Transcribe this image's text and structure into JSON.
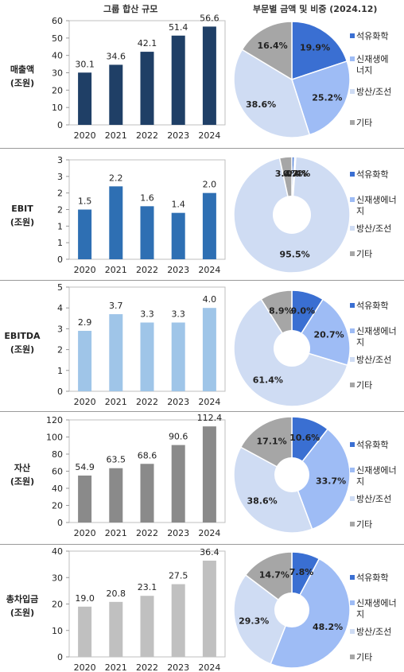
{
  "header": {
    "left_title": "그룹 합산 규모",
    "right_title": "부문별 금액 및 비중 (2024.12)"
  },
  "colors": {
    "bar_revenue": "#1f3f66",
    "bar_ebit": "#2e6fb3",
    "bar_ebitda": "#9fc5e8",
    "bar_assets": "#8a8a8a",
    "bar_debt": "#c0c0c0",
    "pie_petro": "#3a6fd2",
    "pie_renew": "#9ebcf5",
    "pie_defense": "#cfdcf3",
    "pie_other": "#a6a6a6"
  },
  "chart_data": [
    {
      "type": "bar",
      "metric_label": [
        "매출액",
        "(조원)"
      ],
      "categories": [
        "2020",
        "2021",
        "2022",
        "2023",
        "2024"
      ],
      "values": [
        30.1,
        34.6,
        42.1,
        51.4,
        56.6
      ],
      "value_labels": [
        "30.1",
        "34.6",
        "42.1",
        "51.4",
        "56.6"
      ],
      "ylim": [
        0,
        60
      ],
      "yticks": [
        0,
        10,
        20,
        30,
        40,
        50,
        60
      ],
      "ytick_labels": [
        "0",
        "10",
        "20",
        "30",
        "40",
        "50",
        "60"
      ],
      "color": "#1f3f66"
    },
    {
      "type": "bar",
      "metric_label": [
        "EBIT",
        "(조원)"
      ],
      "categories": [
        "2020",
        "2021",
        "2022",
        "2023",
        "2024"
      ],
      "values": [
        1.5,
        2.2,
        1.6,
        1.4,
        2.0
      ],
      "value_labels": [
        "1.5",
        "2.2",
        "1.6",
        "1.4",
        "2.0"
      ],
      "ylim": [
        0,
        3
      ],
      "yticks": [
        0,
        0.5,
        1,
        1.5,
        2,
        2.5,
        3
      ],
      "ytick_labels": [
        "0",
        "1",
        "1",
        "2",
        "2",
        "3",
        "3"
      ],
      "color": "#2e6fb3"
    },
    {
      "type": "bar",
      "metric_label": [
        "EBITDA",
        "(조원)"
      ],
      "categories": [
        "2020",
        "2021",
        "2022",
        "2023",
        "2024"
      ],
      "values": [
        2.9,
        3.7,
        3.3,
        3.3,
        4.0
      ],
      "value_labels": [
        "2.9",
        "3.7",
        "3.3",
        "3.3",
        "4.0"
      ],
      "ylim": [
        0,
        5
      ],
      "yticks": [
        0,
        1,
        2,
        3,
        4,
        5
      ],
      "ytick_labels": [
        "0",
        "1",
        "2",
        "3",
        "4",
        "5"
      ],
      "color": "#9fc5e8"
    },
    {
      "type": "bar",
      "metric_label": [
        "자산",
        "(조원)"
      ],
      "categories": [
        "2020",
        "2021",
        "2022",
        "2023",
        "2024"
      ],
      "values": [
        54.9,
        63.5,
        68.6,
        90.6,
        112.4
      ],
      "value_labels": [
        "54.9",
        "63.5",
        "68.6",
        "90.6",
        "112.4"
      ],
      "ylim": [
        0,
        120
      ],
      "yticks": [
        0,
        20,
        40,
        60,
        80,
        100,
        120
      ],
      "ytick_labels": [
        "0",
        "20",
        "40",
        "60",
        "80",
        "100",
        "120"
      ],
      "color": "#8a8a8a"
    },
    {
      "type": "bar",
      "metric_label": [
        "총차입금",
        "(조원)"
      ],
      "categories": [
        "2020",
        "2021",
        "2022",
        "2023",
        "2024"
      ],
      "values": [
        19.0,
        20.8,
        23.1,
        27.5,
        36.4
      ],
      "value_labels": [
        "19.0",
        "20.8",
        "23.1",
        "27.5",
        "36.4"
      ],
      "ylim": [
        0,
        40
      ],
      "yticks": [
        0,
        10,
        20,
        30,
        40
      ],
      "ytick_labels": [
        "0",
        "10",
        "20",
        "30",
        "40"
      ],
      "color": "#c0c0c0"
    },
    {
      "type": "pie",
      "labels": [
        "석유화학",
        "신재생에너지",
        "방산/조선",
        "기타"
      ],
      "legend_lines": [
        [
          "석유화학"
        ],
        [
          "신재생에",
          "너지"
        ],
        [
          "방산/조선"
        ],
        [
          "기타"
        ]
      ],
      "values": [
        19.9,
        25.2,
        38.6,
        16.4
      ],
      "value_labels": [
        "19.9%",
        "25.2%",
        "38.6%",
        "16.4%"
      ],
      "colors": [
        "#3a6fd2",
        "#9ebcf5",
        "#cfdcf3",
        "#a6a6a6"
      ],
      "donut": false
    },
    {
      "type": "pie",
      "labels": [
        "석유화학",
        "신재생에너지",
        "방산/조선",
        "기타"
      ],
      "legend_lines": [
        [
          "석유화학"
        ],
        [
          "신재생에너",
          "지"
        ],
        [
          "방산/조선"
        ],
        [
          "기타"
        ]
      ],
      "values": [
        0.7,
        0.4,
        95.5,
        3.4
      ],
      "value_labels": [
        "0.7%",
        "0.4%",
        "95.5%",
        "3.4%"
      ],
      "colors": [
        "#3a6fd2",
        "#9ebcf5",
        "#cfdcf3",
        "#a6a6a6"
      ],
      "donut": true
    },
    {
      "type": "pie",
      "labels": [
        "석유화학",
        "신재생에너지",
        "방산/조선",
        "기타"
      ],
      "legend_lines": [
        [
          "석유화학"
        ],
        [
          "신재생에너",
          "지"
        ],
        [
          "방산/조선"
        ],
        [
          "기타"
        ]
      ],
      "values": [
        9.0,
        20.7,
        61.4,
        8.9
      ],
      "value_labels": [
        "9.0%",
        "20.7%",
        "61.4%",
        "8.9%"
      ],
      "colors": [
        "#3a6fd2",
        "#9ebcf5",
        "#cfdcf3",
        "#a6a6a6"
      ],
      "donut": true
    },
    {
      "type": "pie",
      "labels": [
        "석유화학",
        "신재생에너지",
        "방산/조선",
        "기타"
      ],
      "legend_lines": [
        [
          "석유화학"
        ],
        [
          "신재생에너",
          "지"
        ],
        [
          "방산/조선"
        ],
        [
          "기타"
        ]
      ],
      "values": [
        10.6,
        33.7,
        38.6,
        17.1
      ],
      "value_labels": [
        "10.6%",
        "33.7%",
        "38.6%",
        "17.1%"
      ],
      "colors": [
        "#3a6fd2",
        "#9ebcf5",
        "#cfdcf3",
        "#a6a6a6"
      ],
      "donut": true
    },
    {
      "type": "pie",
      "labels": [
        "석유화학",
        "신재생에너지",
        "방산/조선",
        "기타"
      ],
      "legend_lines": [
        [
          "석유화학"
        ],
        [
          "신재생에너",
          "지"
        ],
        [
          "방산/조선"
        ],
        [
          "기타"
        ]
      ],
      "values": [
        7.8,
        48.2,
        29.3,
        14.7
      ],
      "value_labels": [
        "7.8%",
        "48.2%",
        "29.3%",
        "14.7%"
      ],
      "colors": [
        "#3a6fd2",
        "#9ebcf5",
        "#cfdcf3",
        "#a6a6a6"
      ],
      "donut": true
    }
  ]
}
